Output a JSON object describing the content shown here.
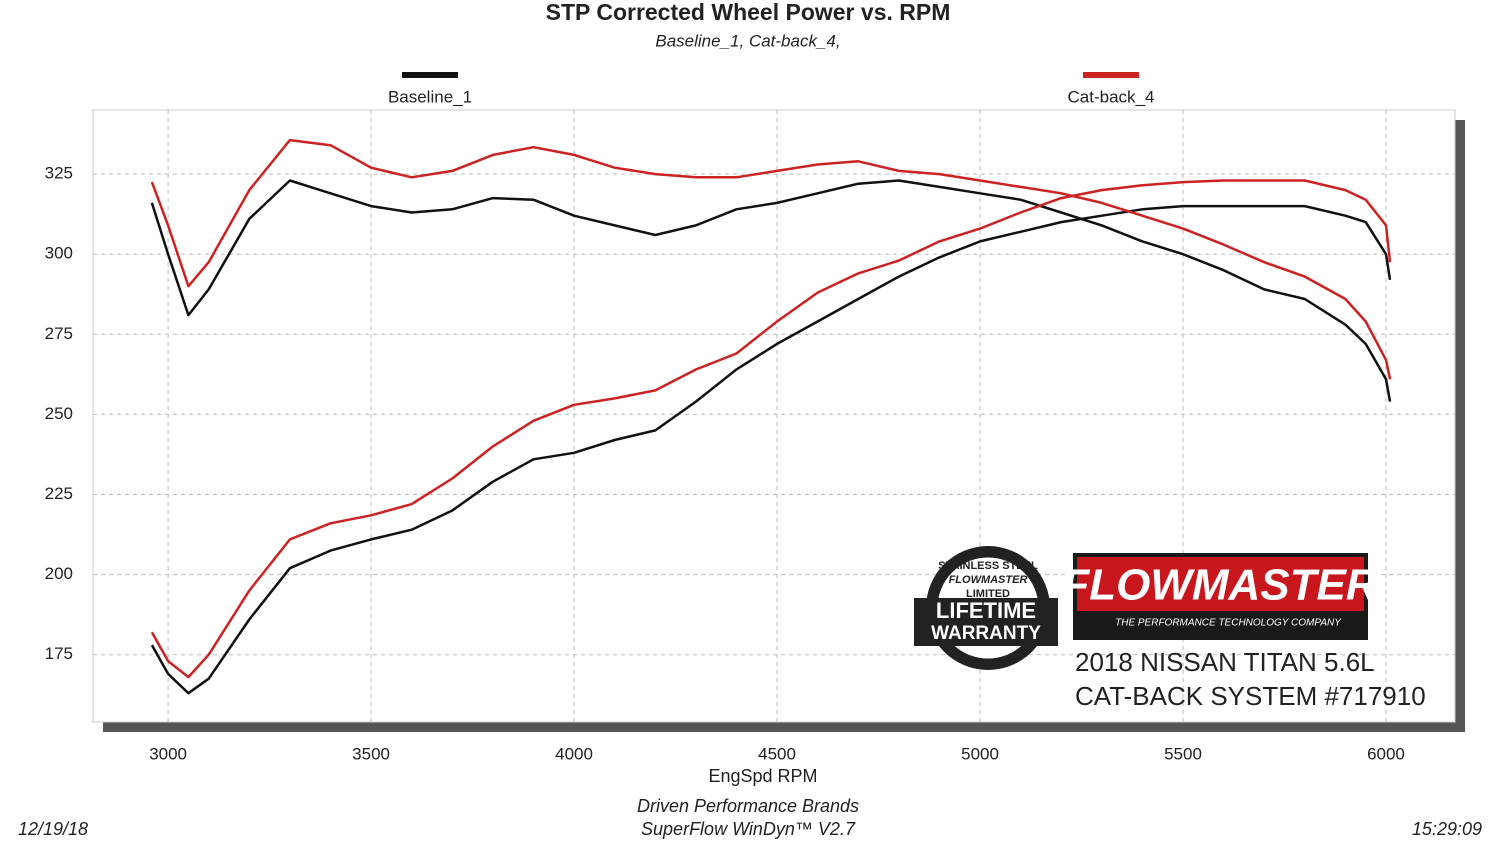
{
  "chart_data": {
    "type": "line",
    "title": "STP Corrected Wheel Power vs. RPM",
    "subtitle": "Baseline_1, Cat-back_4,",
    "x_label": "EngSpd  RPM",
    "footer": [
      "Driven Performance Brands",
      "SuperFlow WinDyn™  V2.7"
    ],
    "date": "12/19/18",
    "time": "15:29:09",
    "x": [
      2960,
      3000,
      3050,
      3100,
      3200,
      3300,
      3400,
      3500,
      3600,
      3700,
      3800,
      3900,
      4000,
      4100,
      4200,
      4300,
      4400,
      4500,
      4600,
      4700,
      4800,
      4900,
      5000,
      5100,
      5200,
      5300,
      5400,
      5500,
      5600,
      5700,
      5800,
      5900,
      5950,
      6000,
      6010
    ],
    "series": [
      {
        "name": "Baseline_1",
        "color": "#111111",
        "values": [
          316,
          300,
          281,
          289,
          311,
          323,
          319,
          315,
          313,
          314,
          317.5,
          317,
          312,
          309,
          306,
          309,
          314,
          316,
          319,
          322,
          323,
          321,
          319,
          317,
          313,
          309,
          304,
          300,
          295,
          289,
          286,
          278,
          272,
          261,
          254
        ],
        "values2": [
          178,
          169,
          163,
          167.5,
          186,
          202,
          207.5,
          211,
          214,
          220,
          229,
          236,
          238,
          242,
          245,
          254,
          264,
          272,
          279,
          286,
          293,
          299,
          304,
          307,
          310,
          312,
          314,
          315,
          315,
          315,
          315,
          312,
          310,
          300,
          292
        ]
      },
      {
        "name": "Cat-back_4",
        "color": "#cc2222",
        "values": [
          322.5,
          309,
          290,
          297.5,
          320,
          335.6,
          334,
          327,
          324,
          326,
          331,
          333.4,
          331,
          327,
          325,
          324,
          324,
          326,
          328,
          329,
          326,
          325,
          323,
          321,
          319,
          316,
          312,
          308,
          303,
          297.5,
          293,
          286,
          279,
          267,
          261
        ],
        "values2": [
          182,
          173,
          168,
          175,
          195,
          211,
          216,
          218.5,
          222,
          230,
          240,
          248,
          253,
          255,
          257.5,
          264,
          269,
          279,
          288,
          294,
          298,
          304,
          308,
          313,
          317.5,
          320,
          321.5,
          322.5,
          323,
          323,
          323,
          320,
          317,
          309,
          297.5
        ]
      }
    ],
    "xlim": [
      2815,
      6170
    ],
    "ylim": [
      154,
      345
    ],
    "xticks": [
      3000,
      3500,
      4000,
      4500,
      5000,
      5500,
      6000
    ],
    "yticks": [
      175,
      200,
      225,
      250,
      275,
      300,
      325
    ],
    "grid": true,
    "badge": [
      "STAINLESS STEEL",
      "FLOWMASTER",
      "LIMITED",
      "LIFETIME",
      "WARRANTY"
    ],
    "logo": [
      "FLOWMASTER",
      "THE PERFORMANCE TECHNOLOGY COMPANY"
    ],
    "caption": [
      "2018 NISSAN TITAN 5.6L",
      "CAT-BACK SYSTEM #717910"
    ]
  }
}
